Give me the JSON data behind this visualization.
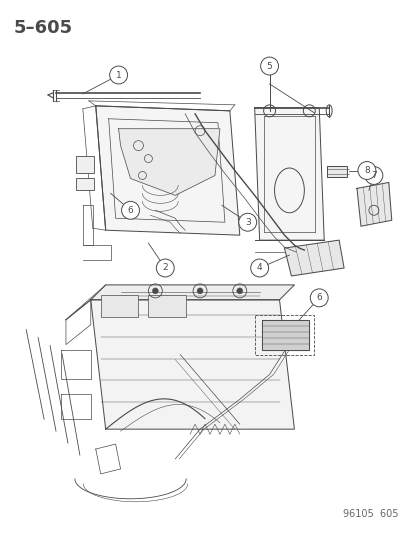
{
  "title": "5–605",
  "footer": "96105  605",
  "bg_color": "#ffffff",
  "line_color": "#4a4a4a",
  "title_fontsize": 13,
  "footer_fontsize": 7
}
